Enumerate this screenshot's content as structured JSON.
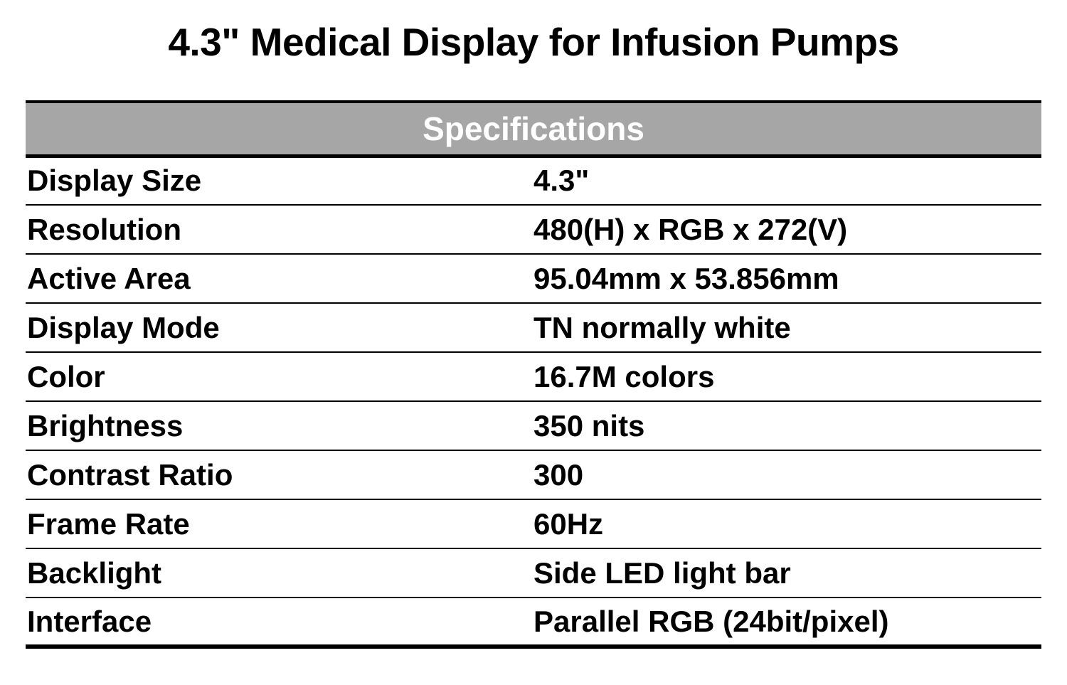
{
  "page": {
    "title": "4.3\" Medical Display for Infusion Pumps"
  },
  "table": {
    "header": "Specifications",
    "rows": [
      {
        "label": "Display Size",
        "value": "4.3\""
      },
      {
        "label": "Resolution",
        "value": "480(H) x RGB x 272(V)"
      },
      {
        "label": "Active Area",
        "value": "95.04mm x 53.856mm"
      },
      {
        "label": "Display Mode",
        "value": "TN normally white"
      },
      {
        "label": "Color",
        "value": "16.7M colors"
      },
      {
        "label": "Brightness",
        "value": "350 nits"
      },
      {
        "label": "Contrast Ratio",
        "value": "300"
      },
      {
        "label": "Frame Rate",
        "value": "60Hz"
      },
      {
        "label": "Backlight",
        "value": "Side LED light bar"
      },
      {
        "label": "Interface",
        "value": "Parallel RGB (24bit/pixel)"
      }
    ],
    "colors": {
      "header_bg": "#a6a6a6",
      "header_text": "#ffffff",
      "body_text": "#000000",
      "border": "#000000",
      "page_bg": "#ffffff"
    }
  }
}
